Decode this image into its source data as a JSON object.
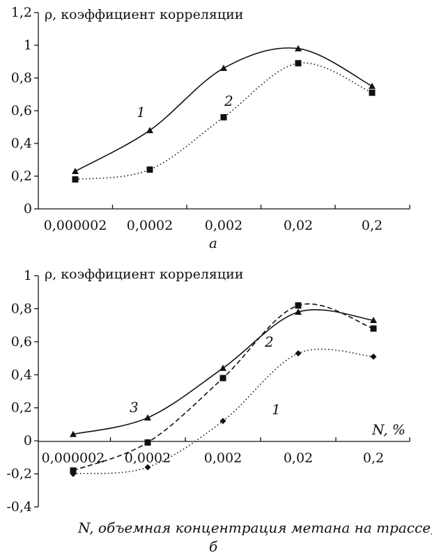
{
  "chart_data": [
    {
      "type": "line",
      "panel_label": "а",
      "ylabel": "ρ, коэффициент корреляции",
      "xlabel": "",
      "categories": [
        "0,000002",
        "0,0002",
        "0,002",
        "0,02",
        "0,2"
      ],
      "y_ticks": [
        "0",
        "0,2",
        "0,4",
        "0,6",
        "0,8",
        "1",
        "1,2"
      ],
      "ylim": [
        0,
        1.2
      ],
      "grid": false,
      "series": [
        {
          "name": "1",
          "marker": "triangle",
          "dash": "solid",
          "values": [
            0.23,
            0.48,
            0.86,
            0.98,
            0.75
          ]
        },
        {
          "name": "2",
          "marker": "square",
          "dash": "dotted",
          "values": [
            0.18,
            0.24,
            0.56,
            0.89,
            0.71
          ]
        }
      ]
    },
    {
      "type": "line",
      "panel_label": "б",
      "ylabel": "ρ, коэффициент корреляции",
      "x_axis_end_label": "N, %",
      "xlabel": "N, объемная концентрация метана на трассе, %",
      "categories": [
        "0,000002",
        "0,0002",
        "0,002",
        "0,02",
        "0,2"
      ],
      "y_ticks": [
        "-0,4",
        "-0,2",
        "0",
        "0,2",
        "0,4",
        "0,6",
        "0,8",
        "1"
      ],
      "ylim": [
        -0.4,
        1
      ],
      "grid": false,
      "series": [
        {
          "name": "1",
          "marker": "diamond",
          "dash": "dotted",
          "values": [
            -0.2,
            -0.16,
            0.12,
            0.53,
            0.51
          ]
        },
        {
          "name": "2",
          "marker": "square",
          "dash": "dashed",
          "values": [
            -0.18,
            -0.01,
            0.38,
            0.82,
            0.68
          ]
        },
        {
          "name": "3",
          "marker": "triangle",
          "dash": "solid",
          "values": [
            0.04,
            0.14,
            0.44,
            0.78,
            0.73
          ]
        }
      ]
    }
  ]
}
